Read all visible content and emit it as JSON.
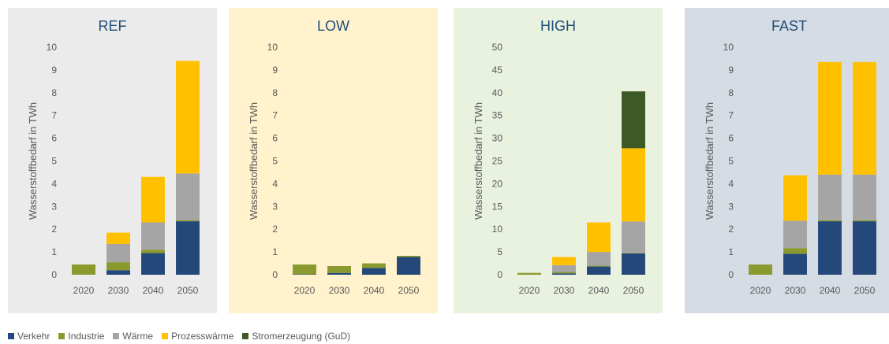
{
  "chart_data": [
    {
      "type": "bar",
      "stacked": true,
      "title": "REF",
      "ylabel": "Wasserstoffbedarf in TWh",
      "categories": [
        "2020",
        "2030",
        "2040",
        "2050"
      ],
      "ylim": [
        0,
        10
      ],
      "yticks": [
        "0",
        "1",
        "2",
        "3",
        "4",
        "5",
        "6",
        "7",
        "8",
        "9",
        "10"
      ],
      "background": "#ebebeb",
      "series": [
        {
          "name": "Verkehr",
          "values": [
            0,
            0.2,
            0.95,
            2.35
          ]
        },
        {
          "name": "Industrie",
          "values": [
            0.45,
            0.35,
            0.15,
            0.05
          ]
        },
        {
          "name": "Wärme",
          "values": [
            0,
            0.8,
            1.2,
            2.05
          ]
        },
        {
          "name": "Prozesswärme",
          "values": [
            0,
            0.5,
            2.0,
            4.95
          ]
        },
        {
          "name": "Stromerzeugung (GuD)",
          "values": [
            0,
            0,
            0,
            0
          ]
        }
      ]
    },
    {
      "type": "bar",
      "stacked": true,
      "title": "LOW",
      "ylabel": "Wasserstoffbedarf in TWh",
      "categories": [
        "2020",
        "2030",
        "2040",
        "2050"
      ],
      "ylim": [
        0,
        10
      ],
      "yticks": [
        "0",
        "1",
        "2",
        "3",
        "4",
        "5",
        "6",
        "7",
        "8",
        "9",
        "10"
      ],
      "background": "#fff2cc",
      "series": [
        {
          "name": "Verkehr",
          "values": [
            0.02,
            0.08,
            0.3,
            0.78
          ]
        },
        {
          "name": "Industrie",
          "values": [
            0.43,
            0.3,
            0.2,
            0.05
          ]
        },
        {
          "name": "Wärme",
          "values": [
            0,
            0,
            0,
            0
          ]
        },
        {
          "name": "Prozesswärme",
          "values": [
            0,
            0,
            0,
            0
          ]
        },
        {
          "name": "Stromerzeugung (GuD)",
          "values": [
            0,
            0,
            0,
            0
          ]
        }
      ]
    },
    {
      "type": "bar",
      "stacked": true,
      "title": "HIGH",
      "ylabel": "Wasserstoffbedarf in TWh",
      "categories": [
        "2020",
        "2030",
        "2040",
        "2050"
      ],
      "ylim": [
        0,
        50
      ],
      "yticks": [
        "0",
        "5",
        "10",
        "15",
        "20",
        "25",
        "30",
        "35",
        "40",
        "45",
        "50"
      ],
      "background": "#e9f1df",
      "series": [
        {
          "name": "Verkehr",
          "values": [
            0,
            0.3,
            1.8,
            4.7
          ]
        },
        {
          "name": "Industrie",
          "values": [
            0.4,
            0.3,
            0.2,
            0.1
          ]
        },
        {
          "name": "Wärme",
          "values": [
            0,
            1.5,
            3.0,
            6.9
          ]
        },
        {
          "name": "Prozesswärme",
          "values": [
            0,
            1.8,
            6.5,
            16.1
          ]
        },
        {
          "name": "Stromerzeugung (GuD)",
          "values": [
            0,
            0,
            0,
            12.5
          ]
        }
      ]
    },
    {
      "type": "bar",
      "stacked": true,
      "title": "FAST",
      "ylabel": "Wasserstoffbedarf in TWh",
      "categories": [
        "2020",
        "2030",
        "2040",
        "2050"
      ],
      "ylim": [
        0,
        10
      ],
      "yticks": [
        "0",
        "1",
        "2",
        "3",
        "4",
        "5",
        "6",
        "7",
        "8",
        "9",
        "10"
      ],
      "background": "#d6dce4",
      "series": [
        {
          "name": "Verkehr",
          "values": [
            0,
            0.92,
            2.35,
            2.35
          ]
        },
        {
          "name": "Industrie",
          "values": [
            0.45,
            0.25,
            0.05,
            0.05
          ]
        },
        {
          "name": "Wärme",
          "values": [
            0,
            1.2,
            2.0,
            2.0
          ]
        },
        {
          "name": "Prozesswärme",
          "values": [
            0,
            2.0,
            4.95,
            4.95
          ]
        },
        {
          "name": "Stromerzeugung (GuD)",
          "values": [
            0,
            0,
            0,
            0
          ]
        }
      ]
    }
  ],
  "legend": {
    "items": [
      {
        "name": "Verkehr",
        "color": "#24487a"
      },
      {
        "name": "Industrie",
        "color": "#8b9a2e"
      },
      {
        "name": "Wärme",
        "color": "#a5a5a5"
      },
      {
        "name": "Prozesswärme",
        "color": "#ffc000"
      },
      {
        "name": "Stromerzeugung (GuD)",
        "color": "#3d5a26"
      }
    ]
  },
  "colors": {
    "Verkehr": "#24487a",
    "Industrie": "#8b9a2e",
    "Wärme": "#a5a5a5",
    "Prozesswärme": "#ffc000",
    "Stromerzeugung (GuD)": "#3d5a26",
    "title": "#1f4e79",
    "axis_text": "#595959"
  }
}
